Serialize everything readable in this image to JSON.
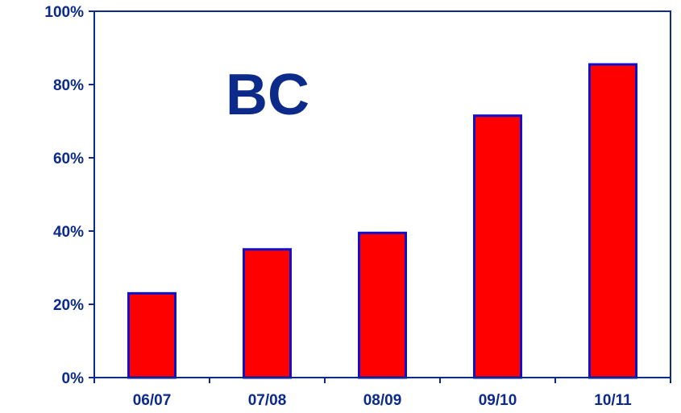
{
  "chart_data": {
    "type": "bar",
    "title": "BC",
    "categories": [
      "06/07",
      "07/08",
      "08/09",
      "09/10",
      "10/11"
    ],
    "values": [
      23,
      35,
      39.5,
      71.5,
      85.5
    ],
    "ylim": [
      0,
      100
    ],
    "yticks": [
      0,
      20,
      40,
      60,
      80,
      100
    ],
    "ytick_labels": [
      "0%",
      "20%",
      "40%",
      "60%",
      "80%",
      "100%"
    ],
    "grid": false,
    "legend": "none",
    "colors": {
      "bar_fill": "#ff0000",
      "bar_stroke": "#1010cc",
      "axis": "#0b2a8a",
      "text": "#0b2a8a"
    }
  }
}
